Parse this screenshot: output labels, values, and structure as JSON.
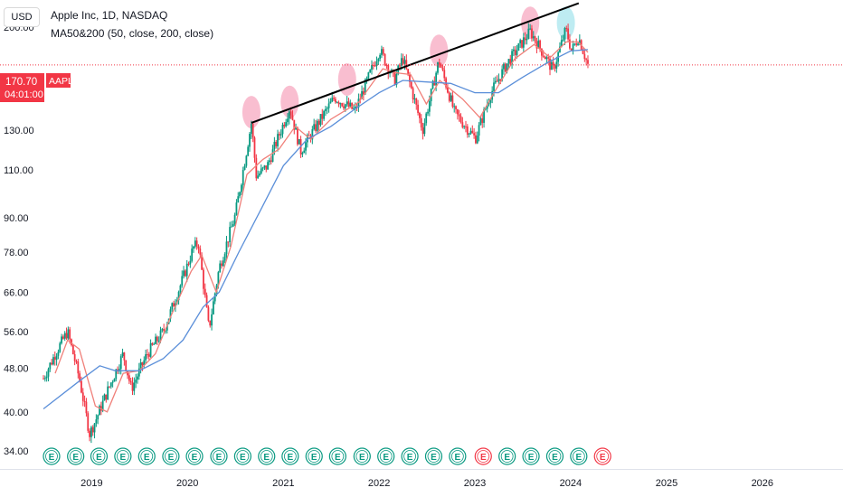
{
  "header": {
    "currency": "USD",
    "symbol_title": "Apple Inc, 1D, NASDAQ",
    "indicator_title": "MA50&200 (50, close, 200, close)"
  },
  "price_tag": {
    "price": "170.70",
    "countdown": "04:01:00",
    "symbol": "AAPL",
    "color": "#f23645"
  },
  "colors": {
    "ma50": "#f0807a",
    "ma200": "#5b8fd9",
    "candle_up": "#089981",
    "candle_down": "#f23645",
    "trendline": "#000000",
    "highlight_pink": "#f7a8c0",
    "highlight_cyan": "#a8e6ee",
    "earnings_green": "#089981",
    "earnings_red": "#f23645"
  },
  "chart_data": {
    "type": "candlestick",
    "y_scale": "log",
    "ylim": [
      31.5,
      224
    ],
    "y_ticks": [
      "200.00",
      "130.00",
      "110.00",
      "90.00",
      "78.00",
      "66.00",
      "56.00",
      "48.00",
      "40.00",
      "34.00"
    ],
    "x_range": [
      "2018-07-01",
      "2026-06-30"
    ],
    "x_ticks": [
      "2019",
      "2020",
      "2021",
      "2022",
      "2023",
      "2024",
      "2025",
      "2026"
    ],
    "grid": false,
    "close_path": [
      [
        "2018-07-01",
        46
      ],
      [
        "2018-08-15",
        51
      ],
      [
        "2018-10-01",
        56
      ],
      [
        "2018-11-15",
        46
      ],
      [
        "2018-12-24",
        36.5
      ],
      [
        "2019-01-15",
        38.5
      ],
      [
        "2019-03-01",
        43.5
      ],
      [
        "2019-05-01",
        51
      ],
      [
        "2019-06-01",
        44
      ],
      [
        "2019-08-01",
        51
      ],
      [
        "2019-10-01",
        56
      ],
      [
        "2019-12-01",
        67
      ],
      [
        "2020-01-24",
        79.5
      ],
      [
        "2020-02-12",
        81
      ],
      [
        "2020-03-23",
        56.5
      ],
      [
        "2020-05-01",
        73
      ],
      [
        "2020-07-01",
        91
      ],
      [
        "2020-09-01",
        134
      ],
      [
        "2020-09-20",
        107
      ],
      [
        "2020-11-01",
        112
      ],
      [
        "2021-01-25",
        143
      ],
      [
        "2021-03-08",
        119
      ],
      [
        "2021-05-01",
        131
      ],
      [
        "2021-07-15",
        149
      ],
      [
        "2021-10-01",
        141
      ],
      [
        "2022-01-03",
        182
      ],
      [
        "2022-03-01",
        160
      ],
      [
        "2022-04-01",
        176
      ],
      [
        "2022-06-16",
        130
      ],
      [
        "2022-08-17",
        174
      ],
      [
        "2022-10-15",
        140
      ],
      [
        "2023-01-03",
        125.5
      ],
      [
        "2023-03-01",
        151
      ],
      [
        "2023-05-01",
        171
      ],
      [
        "2023-07-31",
        196.5
      ],
      [
        "2023-10-26",
        167
      ],
      [
        "2023-12-14",
        198
      ],
      [
        "2024-01-05",
        181
      ],
      [
        "2024-01-31",
        192
      ],
      [
        "2024-03-07",
        170.7
      ]
    ],
    "series": [
      {
        "name": "MA 50",
        "values": [
          [
            "2018-08-15",
            47
          ],
          [
            "2018-10-01",
            54
          ],
          [
            "2018-11-15",
            52
          ],
          [
            "2019-01-15",
            41
          ],
          [
            "2019-03-01",
            40
          ],
          [
            "2019-05-01",
            47
          ],
          [
            "2019-07-01",
            47.5
          ],
          [
            "2019-09-01",
            51
          ],
          [
            "2019-11-01",
            60
          ],
          [
            "2020-01-15",
            72
          ],
          [
            "2020-02-25",
            77
          ],
          [
            "2020-04-20",
            66
          ],
          [
            "2020-06-15",
            80
          ],
          [
            "2020-08-15",
            108
          ],
          [
            "2020-10-15",
            115
          ],
          [
            "2020-12-15",
            120
          ],
          [
            "2021-02-15",
            132
          ],
          [
            "2021-04-15",
            125
          ],
          [
            "2021-07-01",
            136
          ],
          [
            "2021-10-15",
            146
          ],
          [
            "2022-01-15",
            168
          ],
          [
            "2022-03-15",
            165
          ],
          [
            "2022-05-01",
            164
          ],
          [
            "2022-06-30",
            145
          ],
          [
            "2022-08-20",
            160
          ],
          [
            "2022-11-15",
            148
          ],
          [
            "2023-01-20",
            137
          ],
          [
            "2023-03-15",
            152
          ],
          [
            "2023-06-01",
            175
          ],
          [
            "2023-08-15",
            186
          ],
          [
            "2023-10-15",
            176
          ],
          [
            "2023-12-15",
            188
          ],
          [
            "2024-01-30",
            188
          ],
          [
            "2024-03-07",
            180
          ]
        ]
      },
      {
        "name": "MA 200",
        "values": [
          [
            "2018-07-01",
            40.5
          ],
          [
            "2018-11-15",
            45.5
          ],
          [
            "2019-02-01",
            48.5
          ],
          [
            "2019-04-01",
            47.5
          ],
          [
            "2019-07-01",
            47.5
          ],
          [
            "2019-10-01",
            50
          ],
          [
            "2019-12-15",
            54
          ],
          [
            "2020-03-01",
            62
          ],
          [
            "2020-05-01",
            66
          ],
          [
            "2020-07-15",
            78
          ],
          [
            "2020-10-01",
            92
          ],
          [
            "2021-01-01",
            112
          ],
          [
            "2021-04-01",
            125
          ],
          [
            "2021-07-01",
            132
          ],
          [
            "2021-10-01",
            142
          ],
          [
            "2022-01-01",
            152
          ],
          [
            "2022-04-01",
            160
          ],
          [
            "2022-07-01",
            159
          ],
          [
            "2022-10-01",
            158
          ],
          [
            "2023-01-01",
            152
          ],
          [
            "2023-04-01",
            152
          ],
          [
            "2023-07-01",
            162
          ],
          [
            "2023-10-01",
            172
          ],
          [
            "2024-01-01",
            181
          ],
          [
            "2024-03-07",
            182
          ]
        ]
      }
    ],
    "trendline": [
      [
        "2020-09-01",
        134
      ],
      [
        "2024-02-01",
        221
      ]
    ],
    "highlights": [
      {
        "date": "2020-09-01",
        "price": 137,
        "color": "pink"
      },
      {
        "date": "2021-01-25",
        "price": 143,
        "color": "pink"
      },
      {
        "date": "2021-09-01",
        "price": 157,
        "color": "pink"
      },
      {
        "date": "2022-08-17",
        "price": 177,
        "color": "pink"
      },
      {
        "date": "2023-07-31",
        "price": 199,
        "color": "pink"
      },
      {
        "date": "2023-12-14",
        "price": 199,
        "color": "cyan"
      }
    ],
    "earnings": [
      {
        "date": "2018-08-01",
        "beat": true
      },
      {
        "date": "2018-11-01",
        "beat": true
      },
      {
        "date": "2019-01-29",
        "beat": true
      },
      {
        "date": "2019-04-30",
        "beat": true
      },
      {
        "date": "2019-07-30",
        "beat": true
      },
      {
        "date": "2019-10-30",
        "beat": true
      },
      {
        "date": "2020-01-28",
        "beat": true
      },
      {
        "date": "2020-04-30",
        "beat": true
      },
      {
        "date": "2020-07-30",
        "beat": true
      },
      {
        "date": "2020-10-29",
        "beat": true
      },
      {
        "date": "2021-01-27",
        "beat": true
      },
      {
        "date": "2021-04-28",
        "beat": true
      },
      {
        "date": "2021-07-27",
        "beat": true
      },
      {
        "date": "2021-10-28",
        "beat": true
      },
      {
        "date": "2022-01-27",
        "beat": true
      },
      {
        "date": "2022-04-28",
        "beat": true
      },
      {
        "date": "2022-07-28",
        "beat": true
      },
      {
        "date": "2022-10-27",
        "beat": true
      },
      {
        "date": "2023-02-02",
        "beat": false
      },
      {
        "date": "2023-05-04",
        "beat": true
      },
      {
        "date": "2023-08-03",
        "beat": true
      },
      {
        "date": "2023-11-02",
        "beat": true
      },
      {
        "date": "2024-02-01",
        "beat": true
      },
      {
        "date": "2024-05-02",
        "beat": false
      }
    ]
  }
}
